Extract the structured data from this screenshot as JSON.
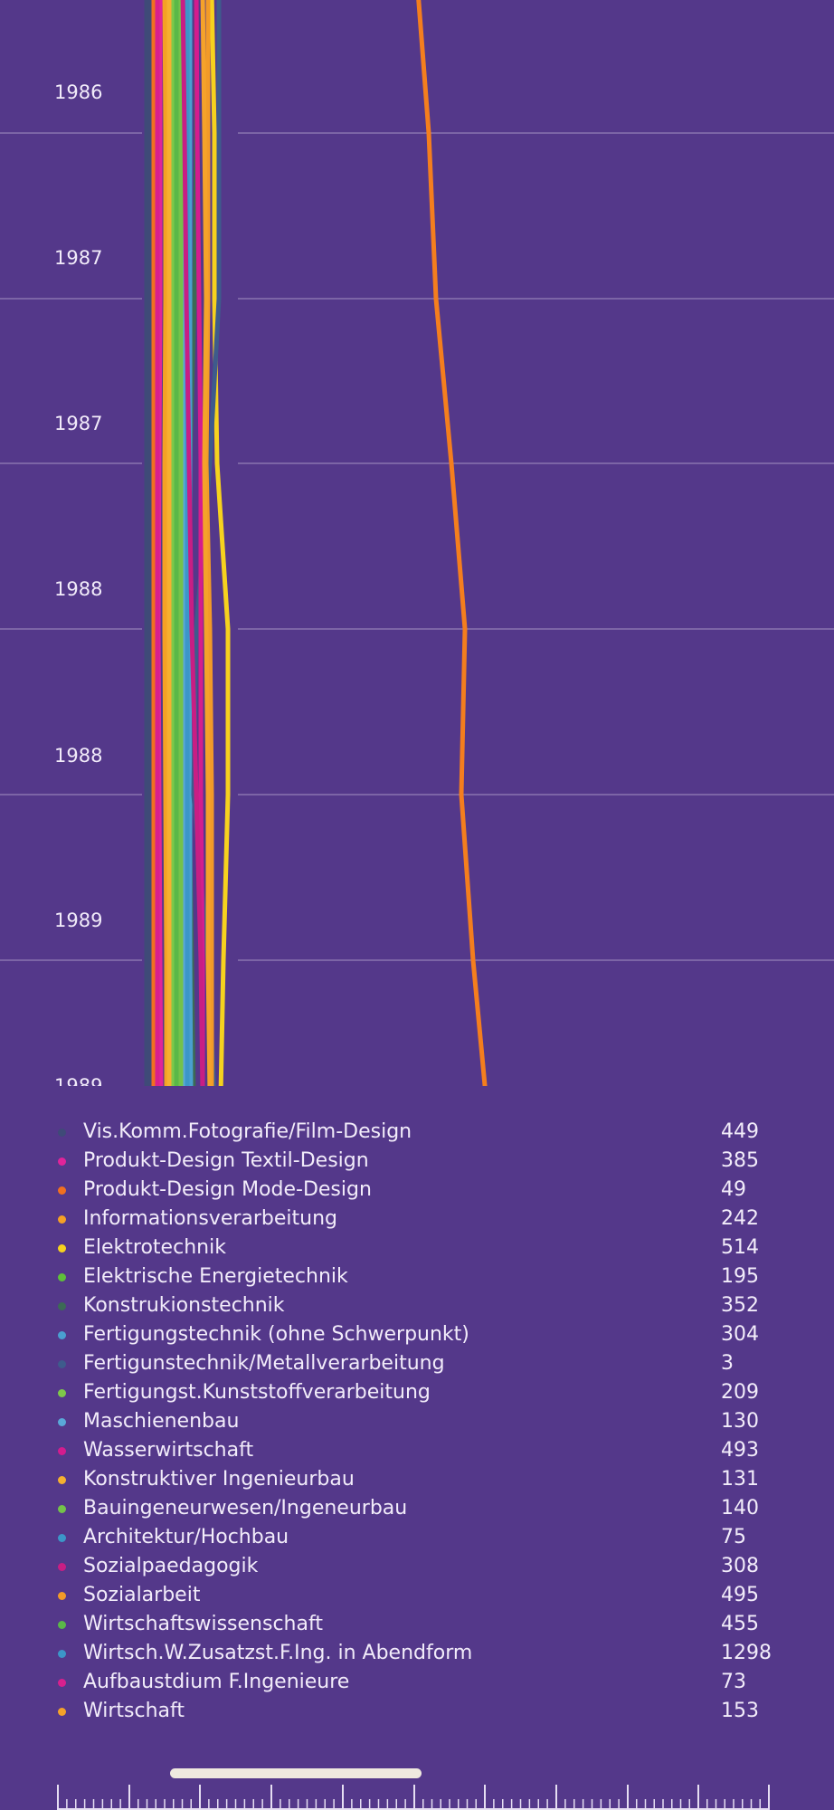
{
  "chart_data": {
    "type": "line",
    "orientation": "vertical-time",
    "y_axis_labels": [
      "1986",
      "1987",
      "1987",
      "1988",
      "1988",
      "1989",
      "1989"
    ],
    "grid": true,
    "series": [
      {
        "name": "Vis.Komm.Fotografie/Film-Design",
        "color": "#3f4a78",
        "values": [
          2,
          2,
          2,
          2,
          2,
          2,
          2,
          2
        ]
      },
      {
        "name": "Produkt-Design Textil-Design",
        "color": "#e0249a",
        "values": [
          15,
          15,
          15,
          14,
          13,
          14,
          15,
          16
        ]
      },
      {
        "name": "Produkt-Design Mode-Design",
        "color": "#f07020",
        "values": [
          8,
          8,
          8,
          8,
          8,
          8,
          8,
          8
        ]
      },
      {
        "name": "Informationsverarbeitung",
        "color": "#f5a025",
        "values": [
          20,
          21,
          21,
          20,
          20,
          21,
          22,
          22
        ]
      },
      {
        "name": "Elektrotechnik",
        "color": "#f6d21e",
        "values": [
          72,
          75,
          75,
          78,
          90,
          90,
          85,
          82
        ]
      },
      {
        "name": "Elektrische Energietechnik",
        "color": "#5fbf3a",
        "values": [
          35,
          35,
          35,
          36,
          38,
          37,
          36,
          36
        ]
      },
      {
        "name": "Konstrukionstechnik",
        "color": "#3c6a55",
        "values": [
          55,
          55,
          53,
          48,
          47,
          47,
          50,
          52
        ]
      },
      {
        "name": "Fertigungstechnik (ohne Schwerpunkt)",
        "color": "#4a9fd0",
        "values": [
          48,
          48,
          48,
          48,
          47,
          48,
          48,
          49
        ]
      },
      {
        "name": "Fertigunstechnik/Metallverarbeitung",
        "color": "#3e5b8c",
        "values": [
          80,
          80,
          80,
          70,
          55,
          52,
          68,
          75
        ]
      },
      {
        "name": "Fertigungst.Kunststoffverarbeitung",
        "color": "#7ec84a",
        "values": [
          30,
          30,
          30,
          30,
          30,
          30,
          30,
          30
        ]
      },
      {
        "name": "Maschienenbau",
        "color": "#5aa8d8",
        "values": [
          42,
          42,
          42,
          42,
          42,
          42,
          42,
          42
        ]
      },
      {
        "name": "Wasserwirtschaft",
        "color": "#d41c8e",
        "values": [
          55,
          56,
          58,
          60,
          60,
          60,
          62,
          62
        ]
      },
      {
        "name": "Konstruktiver Ingenieurbau",
        "color": "#f5b030",
        "values": [
          25,
          25,
          25,
          25,
          25,
          25,
          25,
          25
        ]
      },
      {
        "name": "Bauingeneurwesen/Ingeneurbau",
        "color": "#74c24a",
        "values": [
          38,
          38,
          38,
          38,
          38,
          38,
          38,
          38
        ]
      },
      {
        "name": "Architektur/Hochbau",
        "color": "#3c96c8",
        "values": [
          45,
          45,
          45,
          45,
          45,
          45,
          45,
          45
        ]
      },
      {
        "name": "Sozialpaedagogik",
        "color": "#c81e84",
        "values": [
          40,
          42,
          44,
          47,
          50,
          55,
          60,
          62
        ]
      },
      {
        "name": "Sozialarbeit",
        "color": "#f29a28",
        "values": [
          68,
          68,
          68,
          66,
          70,
          72,
          72,
          72
        ]
      },
      {
        "name": "Wirtschaftswissenschaft",
        "color": "#5ab848",
        "values": [
          33,
          33,
          33,
          33,
          33,
          33,
          33,
          33
        ]
      },
      {
        "name": "Wirtsch.W.Zusatzst.F.Ing. in Abendform",
        "color": "#f47e1e",
        "values": [
          300,
          312,
          320,
          337,
          352,
          348,
          361,
          375
        ]
      },
      {
        "name": "Aufbaustdium F.Ingenieure",
        "color": "#d8208e",
        "values": [
          12,
          12,
          12,
          12,
          12,
          12,
          12,
          12
        ]
      },
      {
        "name": "Wirtschaft",
        "color": "#f5a22a",
        "values": [
          62,
          64,
          66,
          64,
          66,
          68,
          68,
          70
        ]
      }
    ]
  },
  "legend": [
    {
      "label": "Vis.Komm.Fotografie/Film-Design",
      "value": "449",
      "color": "#3f4a78"
    },
    {
      "label": "Produkt-Design Textil-Design",
      "value": "385",
      "color": "#e0249a"
    },
    {
      "label": "Produkt-Design Mode-Design",
      "value": "49",
      "color": "#f07020"
    },
    {
      "label": "Informationsverarbeitung",
      "value": "242",
      "color": "#f5a025"
    },
    {
      "label": "Elektrotechnik",
      "value": "514",
      "color": "#f6d21e"
    },
    {
      "label": "Elektrische Energietechnik",
      "value": "195",
      "color": "#5fbf3a"
    },
    {
      "label": "Konstrukionstechnik",
      "value": "352",
      "color": "#3c6a55"
    },
    {
      "label": "Fertigungstechnik (ohne Schwerpunkt)",
      "value": "304",
      "color": "#4a9fd0"
    },
    {
      "label": "Fertigunstechnik/Metallverarbeitung",
      "value": "3",
      "color": "#3e5b8c"
    },
    {
      "label": "Fertigungst.Kunststoffverarbeitung",
      "value": "209",
      "color": "#7ec84a"
    },
    {
      "label": "Maschienenbau",
      "value": "130",
      "color": "#5aa8d8"
    },
    {
      "label": "Wasserwirtschaft",
      "value": "493",
      "color": "#d41c8e"
    },
    {
      "label": "Konstruktiver Ingenieurbau",
      "value": "131",
      "color": "#f5b030"
    },
    {
      "label": "Bauingeneurwesen/Ingeneurbau",
      "value": "140",
      "color": "#74c24a"
    },
    {
      "label": "Architektur/Hochbau",
      "value": "75",
      "color": "#3c96c8"
    },
    {
      "label": "Sozialpaedagogik",
      "value": "308",
      "color": "#c81e84"
    },
    {
      "label": "Sozialarbeit",
      "value": "495",
      "color": "#f29a28"
    },
    {
      "label": "Wirtschaftswissenschaft",
      "value": "455",
      "color": "#5ab848"
    },
    {
      "label": "Wirtsch.W.Zusatzst.F.Ing. in Abendform",
      "value": "1298",
      "color": "#3c96c8"
    },
    {
      "label": "Aufbaustdium F.Ingenieure",
      "value": "73",
      "color": "#d8208e"
    },
    {
      "label": "Wirtschaft",
      "value": "153",
      "color": "#f5a22a"
    }
  ],
  "colors": {
    "background": "#54388a",
    "gridline": "#8a74b0",
    "text": "#f2ecfa",
    "scrubber_handle": "#efe9df",
    "ticks": "#e6def2"
  }
}
